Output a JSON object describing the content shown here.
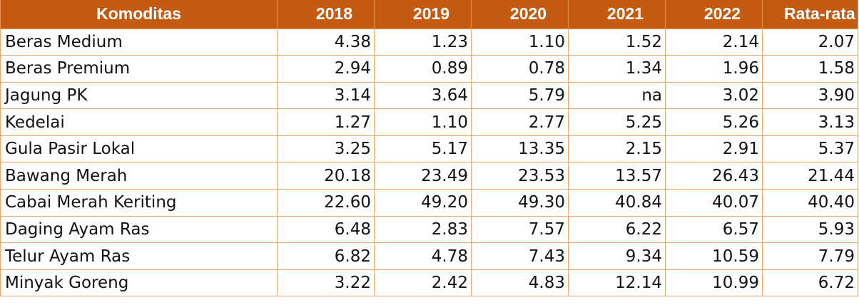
{
  "table": {
    "headers": [
      "Komoditas",
      "2018",
      "2019",
      "2020",
      "2021",
      "2022",
      "Rata-rata"
    ],
    "rows": [
      [
        "Beras Medium",
        "4.38",
        "1.23",
        "1.10",
        "1.52",
        "2.14",
        "2.07"
      ],
      [
        "Beras Premium",
        "2.94",
        "0.89",
        "0.78",
        "1.34",
        "1.96",
        "1.58"
      ],
      [
        "Jagung PK",
        "3.14",
        "3.64",
        "5.79",
        "na",
        "3.02",
        "3.90"
      ],
      [
        "Kedelai",
        "1.27",
        "1.10",
        "2.77",
        "5.25",
        "5.26",
        "3.13"
      ],
      [
        "Gula Pasir Lokal",
        "3.25",
        "5.17",
        "13.35",
        "2.15",
        "2.91",
        "5.37"
      ],
      [
        "Bawang Merah",
        "20.18",
        "23.49",
        "23.53",
        "13.57",
        "26.43",
        "21.44"
      ],
      [
        "Cabai Merah Keriting",
        "22.60",
        "49.20",
        "49.30",
        "40.84",
        "40.07",
        "40.40"
      ],
      [
        "Daging Ayam Ras",
        "6.48",
        "2.83",
        "7.57",
        "6.22",
        "6.57",
        "5.93"
      ],
      [
        "Telur Ayam Ras",
        "6.82",
        "4.78",
        "7.43",
        "9.34",
        "10.59",
        "7.79"
      ],
      [
        "Minyak Goreng",
        "3.22",
        "2.42",
        "4.83",
        "12.14",
        "10.99",
        "6.72"
      ]
    ]
  },
  "colors": {
    "header_bg": "#c55a11",
    "header_text": "#ffffff",
    "grid": "#f0a46a"
  }
}
